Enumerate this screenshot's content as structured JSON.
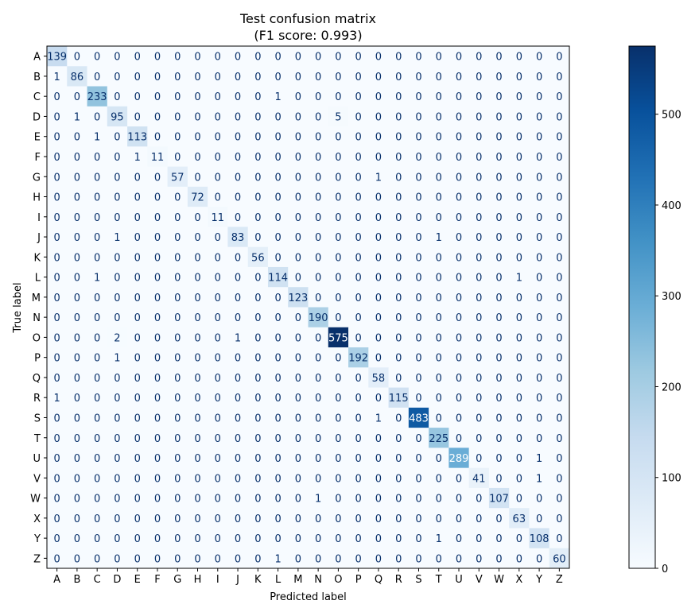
{
  "chart_data": {
    "type": "heatmap",
    "title_line1": "Test confusion matrix",
    "title_line2": "(F1 score: 0.993)",
    "xlabel": "Predicted label",
    "ylabel": "True label",
    "labels": [
      "A",
      "B",
      "C",
      "D",
      "E",
      "F",
      "G",
      "H",
      "I",
      "J",
      "K",
      "L",
      "M",
      "N",
      "O",
      "P",
      "Q",
      "R",
      "S",
      "T",
      "U",
      "V",
      "W",
      "X",
      "Y",
      "Z"
    ],
    "colormap": "Blues",
    "vmin": 0,
    "vmax": 575,
    "colorbar_ticks": [
      0,
      100,
      200,
      300,
      400,
      500
    ],
    "matrix": [
      [
        139,
        0,
        0,
        0,
        0,
        0,
        0,
        0,
        0,
        0,
        0,
        0,
        0,
        0,
        0,
        0,
        0,
        0,
        0,
        0,
        0,
        0,
        0,
        0,
        0,
        0
      ],
      [
        1,
        86,
        0,
        0,
        0,
        0,
        0,
        0,
        0,
        0,
        0,
        0,
        0,
        0,
        0,
        0,
        0,
        0,
        0,
        0,
        0,
        0,
        0,
        0,
        0,
        0
      ],
      [
        0,
        0,
        233,
        0,
        0,
        0,
        0,
        0,
        0,
        0,
        0,
        1,
        0,
        0,
        0,
        0,
        0,
        0,
        0,
        0,
        0,
        0,
        0,
        0,
        0,
        0
      ],
      [
        0,
        1,
        0,
        95,
        0,
        0,
        0,
        0,
        0,
        0,
        0,
        0,
        0,
        0,
        5,
        0,
        0,
        0,
        0,
        0,
        0,
        0,
        0,
        0,
        0,
        0
      ],
      [
        0,
        0,
        1,
        0,
        113,
        0,
        0,
        0,
        0,
        0,
        0,
        0,
        0,
        0,
        0,
        0,
        0,
        0,
        0,
        0,
        0,
        0,
        0,
        0,
        0,
        0
      ],
      [
        0,
        0,
        0,
        0,
        1,
        11,
        0,
        0,
        0,
        0,
        0,
        0,
        0,
        0,
        0,
        0,
        0,
        0,
        0,
        0,
        0,
        0,
        0,
        0,
        0,
        0
      ],
      [
        0,
        0,
        0,
        0,
        0,
        0,
        57,
        0,
        0,
        0,
        0,
        0,
        0,
        0,
        0,
        0,
        1,
        0,
        0,
        0,
        0,
        0,
        0,
        0,
        0,
        0
      ],
      [
        0,
        0,
        0,
        0,
        0,
        0,
        0,
        72,
        0,
        0,
        0,
        0,
        0,
        0,
        0,
        0,
        0,
        0,
        0,
        0,
        0,
        0,
        0,
        0,
        0,
        0
      ],
      [
        0,
        0,
        0,
        0,
        0,
        0,
        0,
        0,
        11,
        0,
        0,
        0,
        0,
        0,
        0,
        0,
        0,
        0,
        0,
        0,
        0,
        0,
        0,
        0,
        0,
        0
      ],
      [
        0,
        0,
        0,
        1,
        0,
        0,
        0,
        0,
        0,
        83,
        0,
        0,
        0,
        0,
        0,
        0,
        0,
        0,
        0,
        1,
        0,
        0,
        0,
        0,
        0,
        0
      ],
      [
        0,
        0,
        0,
        0,
        0,
        0,
        0,
        0,
        0,
        0,
        56,
        0,
        0,
        0,
        0,
        0,
        0,
        0,
        0,
        0,
        0,
        0,
        0,
        0,
        0,
        0
      ],
      [
        0,
        0,
        1,
        0,
        0,
        0,
        0,
        0,
        0,
        0,
        0,
        114,
        0,
        0,
        0,
        0,
        0,
        0,
        0,
        0,
        0,
        0,
        0,
        1,
        0,
        0
      ],
      [
        0,
        0,
        0,
        0,
        0,
        0,
        0,
        0,
        0,
        0,
        0,
        0,
        123,
        0,
        0,
        0,
        0,
        0,
        0,
        0,
        0,
        0,
        0,
        0,
        0,
        0
      ],
      [
        0,
        0,
        0,
        0,
        0,
        0,
        0,
        0,
        0,
        0,
        0,
        0,
        0,
        190,
        0,
        0,
        0,
        0,
        0,
        0,
        0,
        0,
        0,
        0,
        0,
        0
      ],
      [
        0,
        0,
        0,
        2,
        0,
        0,
        0,
        0,
        0,
        1,
        0,
        0,
        0,
        0,
        575,
        0,
        0,
        0,
        0,
        0,
        0,
        0,
        0,
        0,
        0,
        0
      ],
      [
        0,
        0,
        0,
        1,
        0,
        0,
        0,
        0,
        0,
        0,
        0,
        0,
        0,
        0,
        0,
        192,
        0,
        0,
        0,
        0,
        0,
        0,
        0,
        0,
        0,
        0
      ],
      [
        0,
        0,
        0,
        0,
        0,
        0,
        0,
        0,
        0,
        0,
        0,
        0,
        0,
        0,
        0,
        0,
        58,
        0,
        0,
        0,
        0,
        0,
        0,
        0,
        0,
        0
      ],
      [
        1,
        0,
        0,
        0,
        0,
        0,
        0,
        0,
        0,
        0,
        0,
        0,
        0,
        0,
        0,
        0,
        0,
        115,
        0,
        0,
        0,
        0,
        0,
        0,
        0,
        0
      ],
      [
        0,
        0,
        0,
        0,
        0,
        0,
        0,
        0,
        0,
        0,
        0,
        0,
        0,
        0,
        0,
        0,
        1,
        0,
        483,
        0,
        0,
        0,
        0,
        0,
        0,
        0
      ],
      [
        0,
        0,
        0,
        0,
        0,
        0,
        0,
        0,
        0,
        0,
        0,
        0,
        0,
        0,
        0,
        0,
        0,
        0,
        0,
        225,
        0,
        0,
        0,
        0,
        0,
        0
      ],
      [
        0,
        0,
        0,
        0,
        0,
        0,
        0,
        0,
        0,
        0,
        0,
        0,
        0,
        0,
        0,
        0,
        0,
        0,
        0,
        0,
        289,
        0,
        0,
        0,
        1,
        0
      ],
      [
        0,
        0,
        0,
        0,
        0,
        0,
        0,
        0,
        0,
        0,
        0,
        0,
        0,
        0,
        0,
        0,
        0,
        0,
        0,
        0,
        0,
        41,
        0,
        0,
        1,
        0
      ],
      [
        0,
        0,
        0,
        0,
        0,
        0,
        0,
        0,
        0,
        0,
        0,
        0,
        0,
        1,
        0,
        0,
        0,
        0,
        0,
        0,
        0,
        0,
        107,
        0,
        0,
        0
      ],
      [
        0,
        0,
        0,
        0,
        0,
        0,
        0,
        0,
        0,
        0,
        0,
        0,
        0,
        0,
        0,
        0,
        0,
        0,
        0,
        0,
        0,
        0,
        0,
        63,
        0,
        0
      ],
      [
        0,
        0,
        0,
        0,
        0,
        0,
        0,
        0,
        0,
        0,
        0,
        0,
        0,
        0,
        0,
        0,
        0,
        0,
        0,
        1,
        0,
        0,
        0,
        0,
        108,
        0
      ],
      [
        0,
        0,
        0,
        0,
        0,
        0,
        0,
        0,
        0,
        0,
        0,
        1,
        0,
        0,
        0,
        0,
        0,
        0,
        0,
        0,
        0,
        0,
        0,
        0,
        0,
        60
      ]
    ]
  }
}
